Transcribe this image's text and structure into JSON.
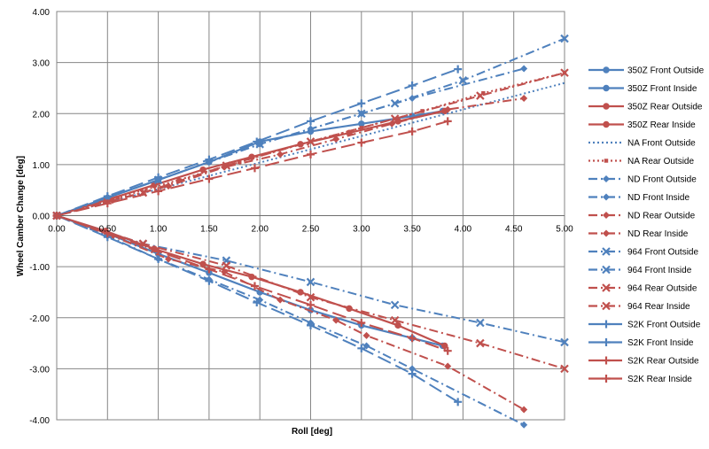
{
  "chart_data": {
    "type": "line",
    "title": "",
    "xlabel": "Roll [deg]",
    "ylabel": "Wheel Camber Change [deg]",
    "xlim": [
      0,
      5
    ],
    "ylim": [
      -4,
      4
    ],
    "x_ticks": [
      "0.00",
      "0.50",
      "1.00",
      "1.50",
      "2.00",
      "2.50",
      "3.00",
      "3.50",
      "4.00",
      "4.50",
      "5.00"
    ],
    "y_ticks": [
      "4.00",
      "3.00",
      "2.00",
      "1.00",
      "0.00",
      "-1.00",
      "-2.00",
      "-3.00",
      "-4.00"
    ],
    "grid": true,
    "legend_position": "right",
    "colors": {
      "blue": "#4f81bd",
      "red": "#c0504d",
      "grid": "#868686"
    },
    "series": [
      {
        "name": "350Z Front Outside",
        "color": "#4f81bd",
        "dash": "solid",
        "marker": "circle",
        "points": [
          [
            0,
            0
          ],
          [
            0.5,
            0.35
          ],
          [
            1.0,
            0.7
          ],
          [
            1.5,
            1.05
          ],
          [
            2.0,
            1.45
          ],
          [
            2.5,
            1.65
          ],
          [
            3.0,
            1.8
          ],
          [
            3.5,
            1.95
          ],
          [
            3.8,
            2.05
          ]
        ]
      },
      {
        "name": "350Z Front Inside",
        "color": "#4f81bd",
        "dash": "solid",
        "marker": "circle",
        "points": [
          [
            0,
            0
          ],
          [
            0.5,
            -0.35
          ],
          [
            1.0,
            -0.75
          ],
          [
            1.5,
            -1.12
          ],
          [
            2.0,
            -1.5
          ],
          [
            2.5,
            -1.85
          ],
          [
            3.0,
            -2.15
          ],
          [
            3.5,
            -2.4
          ],
          [
            3.8,
            -2.55
          ]
        ]
      },
      {
        "name": "350Z Rear Outside",
        "color": "#c0504d",
        "dash": "solid",
        "marker": "circle",
        "points": [
          [
            0,
            0
          ],
          [
            0.48,
            0.3
          ],
          [
            0.96,
            0.6
          ],
          [
            1.44,
            0.9
          ],
          [
            1.92,
            1.15
          ],
          [
            2.4,
            1.4
          ],
          [
            2.88,
            1.62
          ],
          [
            3.36,
            1.85
          ],
          [
            3.82,
            2.05
          ]
        ]
      },
      {
        "name": "350Z Rear Inside",
        "color": "#c0504d",
        "dash": "solid",
        "marker": "circle",
        "points": [
          [
            0,
            0
          ],
          [
            0.48,
            -0.3
          ],
          [
            0.96,
            -0.65
          ],
          [
            1.44,
            -0.95
          ],
          [
            1.92,
            -1.2
          ],
          [
            2.4,
            -1.5
          ],
          [
            2.88,
            -1.82
          ],
          [
            3.36,
            -2.15
          ],
          [
            3.82,
            -2.55
          ]
        ]
      },
      {
        "name": "NA Front Outside",
        "color": "#4f81bd",
        "dash": "dot",
        "marker": "none",
        "points": [
          [
            0,
            0
          ],
          [
            5.0,
            2.6
          ]
        ]
      },
      {
        "name": "NA Rear Outside",
        "color": "#c0504d",
        "dash": "dot",
        "marker": "square",
        "points": [
          [
            0,
            0
          ],
          [
            0.6,
            0.35
          ],
          [
            1.2,
            0.7
          ],
          [
            1.8,
            1.05
          ],
          [
            2.4,
            1.4
          ],
          [
            3.0,
            1.72
          ],
          [
            3.6,
            2.05
          ],
          [
            4.2,
            2.4
          ],
          [
            5.0,
            2.8
          ]
        ]
      },
      {
        "name": "ND Front Outside",
        "color": "#4f81bd",
        "dash": "dashdot",
        "marker": "diamond",
        "points": [
          [
            0,
            0
          ],
          [
            0.5,
            0.35
          ],
          [
            1.0,
            0.7
          ],
          [
            1.5,
            1.05
          ],
          [
            2.0,
            1.4
          ],
          [
            2.5,
            1.7
          ],
          [
            3.0,
            2.0
          ],
          [
            3.5,
            2.3
          ],
          [
            4.6,
            2.88
          ]
        ]
      },
      {
        "name": "ND Front Inside",
        "color": "#4f81bd",
        "dash": "dashdot",
        "marker": "diamond",
        "points": [
          [
            0,
            0
          ],
          [
            0.5,
            -0.4
          ],
          [
            1.0,
            -0.85
          ],
          [
            1.5,
            -1.25
          ],
          [
            2.0,
            -1.65
          ],
          [
            2.5,
            -2.1
          ],
          [
            3.05,
            -2.55
          ],
          [
            3.5,
            -3.0
          ],
          [
            4.6,
            -4.1
          ]
        ]
      },
      {
        "name": "ND Rear Outside",
        "color": "#c0504d",
        "dash": "dashdot",
        "marker": "diamond",
        "points": [
          [
            0,
            0
          ],
          [
            0.55,
            0.3
          ],
          [
            1.1,
            0.58
          ],
          [
            1.65,
            0.95
          ],
          [
            2.2,
            1.2
          ],
          [
            2.75,
            1.5
          ],
          [
            3.3,
            1.8
          ],
          [
            3.85,
            2.08
          ],
          [
            4.6,
            2.3
          ]
        ]
      },
      {
        "name": "ND Rear Inside",
        "color": "#c0504d",
        "dash": "dashdot",
        "marker": "diamond",
        "points": [
          [
            0,
            0
          ],
          [
            0.55,
            -0.4
          ],
          [
            1.1,
            -0.85
          ],
          [
            1.65,
            -1.1
          ],
          [
            2.2,
            -1.65
          ],
          [
            2.75,
            -2.05
          ],
          [
            3.05,
            -2.35
          ],
          [
            3.85,
            -2.95
          ],
          [
            4.6,
            -3.8
          ]
        ]
      },
      {
        "name": "964 Front Outside",
        "color": "#4f81bd",
        "dash": "dashdot",
        "marker": "x",
        "points": [
          [
            0,
            0
          ],
          [
            1.0,
            0.7
          ],
          [
            2.0,
            1.4
          ],
          [
            3.0,
            2.0
          ],
          [
            3.33,
            2.2
          ],
          [
            4.0,
            2.65
          ],
          [
            5.0,
            3.47
          ]
        ]
      },
      {
        "name": "964 Front Inside",
        "color": "#4f81bd",
        "dash": "dashdot",
        "marker": "x",
        "points": [
          [
            0,
            0
          ],
          [
            0.85,
            -0.55
          ],
          [
            1.67,
            -0.88
          ],
          [
            2.5,
            -1.3
          ],
          [
            3.33,
            -1.75
          ],
          [
            4.17,
            -2.1
          ],
          [
            5.0,
            -2.48
          ]
        ]
      },
      {
        "name": "964 Rear Outside",
        "color": "#c0504d",
        "dash": "dashdot",
        "marker": "x",
        "points": [
          [
            0,
            0
          ],
          [
            0.85,
            0.45
          ],
          [
            1.67,
            0.98
          ],
          [
            2.5,
            1.45
          ],
          [
            3.33,
            1.9
          ],
          [
            4.17,
            2.35
          ],
          [
            5.0,
            2.8
          ]
        ]
      },
      {
        "name": "964 Rear Inside",
        "color": "#c0504d",
        "dash": "dashdot",
        "marker": "x",
        "points": [
          [
            0,
            0
          ],
          [
            0.85,
            -0.55
          ],
          [
            1.67,
            -0.98
          ],
          [
            2.5,
            -1.6
          ],
          [
            3.33,
            -2.05
          ],
          [
            4.17,
            -2.5
          ],
          [
            5.0,
            -3.0
          ]
        ]
      },
      {
        "name": "S2K Front Outside",
        "color": "#4f81bd",
        "dash": "longdash",
        "marker": "plus",
        "points": [
          [
            0,
            0
          ],
          [
            0.5,
            0.38
          ],
          [
            1.0,
            0.75
          ],
          [
            1.5,
            1.1
          ],
          [
            1.97,
            1.45
          ],
          [
            2.5,
            1.85
          ],
          [
            3.0,
            2.2
          ],
          [
            3.5,
            2.55
          ],
          [
            3.95,
            2.87
          ]
        ]
      },
      {
        "name": "S2K Front Inside",
        "color": "#4f81bd",
        "dash": "longdash",
        "marker": "plus",
        "points": [
          [
            0,
            0
          ],
          [
            0.5,
            -0.42
          ],
          [
            1.0,
            -0.85
          ],
          [
            1.5,
            -1.28
          ],
          [
            1.97,
            -1.7
          ],
          [
            2.5,
            -2.15
          ],
          [
            3.0,
            -2.6
          ],
          [
            3.5,
            -3.1
          ],
          [
            3.95,
            -3.65
          ]
        ]
      },
      {
        "name": "S2K Rear Outside",
        "color": "#c0504d",
        "dash": "longdash",
        "marker": "plus",
        "points": [
          [
            0,
            0
          ],
          [
            0.5,
            0.24
          ],
          [
            1.0,
            0.48
          ],
          [
            1.5,
            0.72
          ],
          [
            1.95,
            0.93
          ],
          [
            2.5,
            1.2
          ],
          [
            3.0,
            1.43
          ],
          [
            3.5,
            1.65
          ],
          [
            3.85,
            1.85
          ]
        ]
      },
      {
        "name": "S2K Rear Inside",
        "color": "#c0504d",
        "dash": "longdash",
        "marker": "plus",
        "points": [
          [
            0,
            0
          ],
          [
            0.5,
            -0.35
          ],
          [
            1.0,
            -0.7
          ],
          [
            1.5,
            -1.05
          ],
          [
            1.95,
            -1.38
          ],
          [
            2.5,
            -1.75
          ],
          [
            3.0,
            -2.1
          ],
          [
            3.5,
            -2.4
          ],
          [
            3.85,
            -2.65
          ]
        ]
      }
    ]
  }
}
